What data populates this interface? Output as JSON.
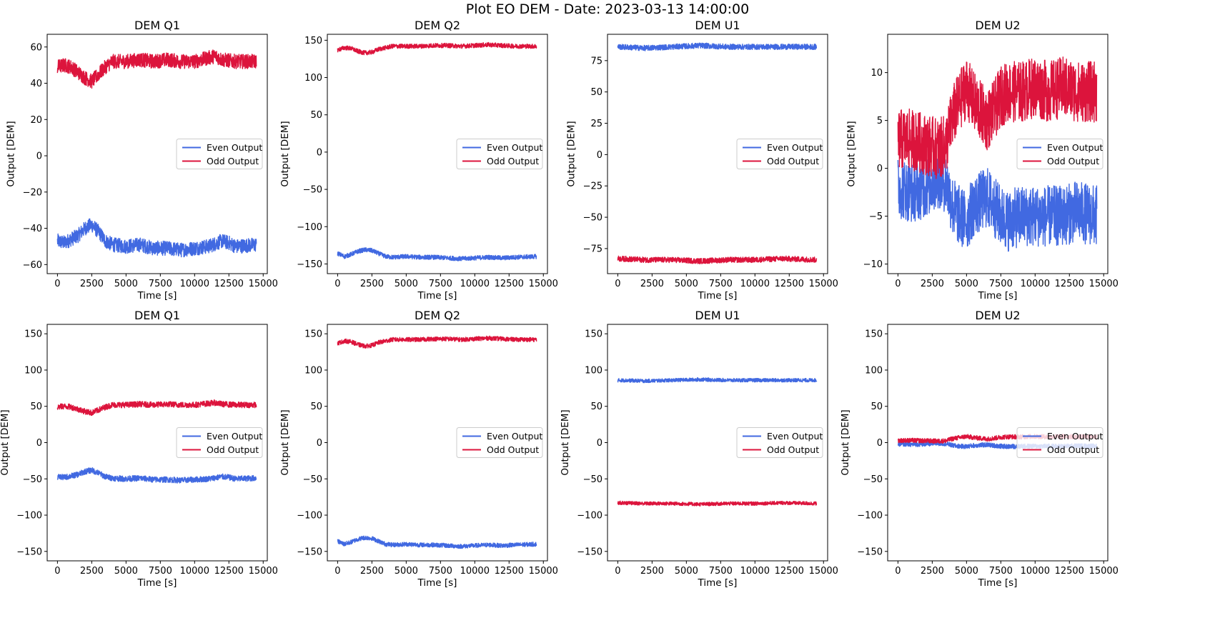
{
  "figure_title": "Plot EO DEM - Date: 2023-03-13 14:00:00",
  "colors": {
    "even": "#4169E1",
    "odd": "#DC143C"
  },
  "chart_data": [
    {
      "type": "line",
      "title": "DEM Q1",
      "xlabel": "Time [s]",
      "ylabel": "Output [DEM]",
      "xlim": [
        -750,
        15300
      ],
      "ylim": [
        -65,
        67
      ],
      "xticks": [
        0,
        2500,
        5000,
        7500,
        10000,
        12500,
        15000
      ],
      "xtick_labels": [
        "0",
        "2500",
        "5000",
        "7500",
        "10000",
        "12500",
        "15000"
      ],
      "yticks": [
        -60,
        -40,
        -20,
        0,
        20,
        40,
        60
      ],
      "ytick_labels": [
        "−60",
        "−40",
        "−20",
        "0",
        "20",
        "40",
        "60"
      ],
      "legend": {
        "position": "center-right",
        "entries": [
          "Even Output",
          "Odd Output"
        ]
      },
      "series": [
        {
          "name": "Even Output",
          "color": "#4169E1",
          "x": [
            0,
            500,
            1000,
            1500,
            2000,
            2500,
            3000,
            3500,
            4000,
            5000,
            6000,
            7000,
            8000,
            9000,
            10000,
            11000,
            12000,
            12500,
            13000,
            14500
          ],
          "y": [
            -47,
            -48,
            -46,
            -44,
            -40,
            -38,
            -42,
            -47,
            -49,
            -50,
            -49,
            -51,
            -51,
            -52,
            -51,
            -50,
            -47,
            -48,
            -50,
            -49
          ],
          "band": 4
        },
        {
          "name": "Odd Output",
          "color": "#DC143C",
          "x": [
            0,
            500,
            1000,
            1500,
            2000,
            2500,
            3000,
            3500,
            4000,
            5000,
            6000,
            7000,
            8000,
            9000,
            10000,
            11000,
            11500,
            12000,
            13000,
            14500
          ],
          "y": [
            49,
            50,
            49,
            46,
            43,
            41,
            45,
            49,
            52,
            52,
            53,
            52,
            53,
            52,
            52,
            54,
            55,
            53,
            52,
            52
          ],
          "band": 4
        }
      ]
    },
    {
      "type": "line",
      "title": "DEM Q2",
      "xlabel": "Time [s]",
      "ylabel": "Output [DEM]",
      "xlim": [
        -750,
        15300
      ],
      "ylim": [
        -163,
        158
      ],
      "xticks": [
        0,
        2500,
        5000,
        7500,
        10000,
        12500,
        15000
      ],
      "xtick_labels": [
        "0",
        "2500",
        "5000",
        "7500",
        "10000",
        "12500",
        "15000"
      ],
      "yticks": [
        -150,
        -100,
        -50,
        0,
        50,
        100,
        150
      ],
      "ytick_labels": [
        "−150",
        "−100",
        "−50",
        "0",
        "50",
        "100",
        "150"
      ],
      "legend": {
        "position": "center-right",
        "entries": [
          "Even Output",
          "Odd Output"
        ]
      },
      "series": [
        {
          "name": "Even Output",
          "color": "#4169E1",
          "x": [
            0,
            500,
            1000,
            1500,
            2000,
            2500,
            3000,
            3500,
            4000,
            5000,
            6000,
            7000,
            8000,
            9000,
            10000,
            11000,
            12000,
            13000,
            14500
          ],
          "y": [
            -136,
            -140,
            -137,
            -133,
            -131,
            -132,
            -136,
            -140,
            -141,
            -140,
            -141,
            -141,
            -142,
            -143,
            -142,
            -141,
            -142,
            -141,
            -140
          ],
          "band": 3
        },
        {
          "name": "Odd Output",
          "color": "#DC143C",
          "x": [
            0,
            500,
            1000,
            1500,
            2000,
            2500,
            3000,
            3500,
            4000,
            5000,
            6000,
            7000,
            8000,
            9000,
            10000,
            11000,
            12000,
            13000,
            14500
          ],
          "y": [
            137,
            140,
            139,
            135,
            133,
            134,
            138,
            140,
            142,
            142,
            142,
            143,
            143,
            142,
            143,
            144,
            143,
            142,
            142
          ],
          "band": 3
        }
      ]
    },
    {
      "type": "line",
      "title": "DEM U1",
      "xlabel": "Time [s]",
      "ylabel": "Output [DEM]",
      "xlim": [
        -750,
        15300
      ],
      "ylim": [
        -95,
        96
      ],
      "xticks": [
        0,
        2500,
        5000,
        7500,
        10000,
        12500,
        15000
      ],
      "xtick_labels": [
        "0",
        "2500",
        "5000",
        "7500",
        "10000",
        "12500",
        "15000"
      ],
      "yticks": [
        -75,
        -50,
        -25,
        0,
        25,
        50,
        75
      ],
      "ytick_labels": [
        "−75",
        "−50",
        "−25",
        "0",
        "25",
        "50",
        "75"
      ],
      "legend": {
        "position": "center-right",
        "entries": [
          "Even Output",
          "Odd Output"
        ]
      },
      "series": [
        {
          "name": "Even Output",
          "color": "#4169E1",
          "x": [
            0,
            2000,
            4000,
            6000,
            8000,
            10000,
            12000,
            14500
          ],
          "y": [
            86,
            85,
            86,
            87,
            86,
            86,
            86,
            86
          ],
          "band": 2.2
        },
        {
          "name": "Odd Output",
          "color": "#DC143C",
          "x": [
            0,
            2000,
            4000,
            6000,
            8000,
            10000,
            12000,
            14500
          ],
          "y": [
            -83,
            -84,
            -84,
            -85,
            -84,
            -84,
            -83,
            -84
          ],
          "band": 2.2
        }
      ]
    },
    {
      "type": "line",
      "title": "DEM U2",
      "xlabel": "Time [s]",
      "ylabel": "Output [DEM]",
      "xlim": [
        -750,
        15300
      ],
      "ylim": [
        -11,
        14
      ],
      "xticks": [
        0,
        2500,
        5000,
        7500,
        10000,
        12500,
        15000
      ],
      "xtick_labels": [
        "0",
        "2500",
        "5000",
        "7500",
        "10000",
        "12500",
        "15000"
      ],
      "yticks": [
        -10,
        -5,
        0,
        5,
        10
      ],
      "ytick_labels": [
        "−10",
        "−5",
        "0",
        "5",
        "10"
      ],
      "legend": {
        "position": "center-right",
        "entries": [
          "Even Output",
          "Odd Output"
        ]
      },
      "series": [
        {
          "name": "Even Output",
          "color": "#4169E1",
          "x": [
            0,
            1000,
            2000,
            3000,
            3500,
            4000,
            4500,
            5000,
            5500,
            6000,
            6500,
            7000,
            7500,
            8000,
            9000,
            10000,
            11000,
            12000,
            13000,
            14500
          ],
          "y": [
            -2,
            -2.5,
            -2,
            -1,
            -1.5,
            -4,
            -5,
            -5.5,
            -4,
            -3.5,
            -3,
            -4,
            -5,
            -5.5,
            -5,
            -5,
            -5,
            -5,
            -4.5,
            -5
          ],
          "band": 3.2
        },
        {
          "name": "Odd Output",
          "color": "#DC143C",
          "x": [
            0,
            1000,
            2000,
            3000,
            3500,
            4000,
            4500,
            5000,
            5500,
            6000,
            6500,
            7000,
            7500,
            8000,
            9000,
            10000,
            11000,
            12000,
            13000,
            14500
          ],
          "y": [
            3,
            3,
            2.5,
            2,
            2.5,
            5.5,
            7,
            8.5,
            7,
            6,
            5,
            6,
            7.5,
            8,
            8,
            8.5,
            8,
            8.5,
            8,
            8
          ],
          "band": 3.2
        }
      ]
    },
    {
      "type": "line",
      "title": "DEM Q1",
      "xlabel": "Time [s]",
      "ylabel": "Output [DEM]",
      "xlim": [
        -750,
        15300
      ],
      "ylim": [
        -163,
        163
      ],
      "xticks": [
        0,
        2500,
        5000,
        7500,
        10000,
        12500,
        15000
      ],
      "xtick_labels": [
        "0",
        "2500",
        "5000",
        "7500",
        "10000",
        "12500",
        "15000"
      ],
      "yticks": [
        -150,
        -100,
        -50,
        0,
        50,
        100,
        150
      ],
      "ytick_labels": [
        "−150",
        "−100",
        "−50",
        "0",
        "50",
        "100",
        "150"
      ],
      "legend": {
        "position": "center-right",
        "entries": [
          "Even Output",
          "Odd Output"
        ]
      },
      "series": [
        {
          "name": "Even Output",
          "color": "#4169E1",
          "x": [
            0,
            500,
            1000,
            1500,
            2000,
            2500,
            3000,
            3500,
            4000,
            5000,
            6000,
            7000,
            8000,
            9000,
            10000,
            11000,
            12000,
            12500,
            13000,
            14500
          ],
          "y": [
            -47,
            -48,
            -46,
            -44,
            -40,
            -38,
            -42,
            -47,
            -49,
            -50,
            -49,
            -51,
            -51,
            -52,
            -51,
            -50,
            -47,
            -48,
            -50,
            -49
          ],
          "band": 4
        },
        {
          "name": "Odd Output",
          "color": "#DC143C",
          "x": [
            0,
            500,
            1000,
            1500,
            2000,
            2500,
            3000,
            3500,
            4000,
            5000,
            6000,
            7000,
            8000,
            9000,
            10000,
            11000,
            11500,
            12000,
            13000,
            14500
          ],
          "y": [
            49,
            50,
            49,
            46,
            43,
            41,
            45,
            49,
            52,
            52,
            53,
            52,
            53,
            52,
            52,
            54,
            55,
            53,
            52,
            52
          ],
          "band": 4
        }
      ]
    },
    {
      "type": "line",
      "title": "DEM Q2",
      "xlabel": "Time [s]",
      "ylabel": "Output [DEM]",
      "xlim": [
        -750,
        15300
      ],
      "ylim": [
        -163,
        163
      ],
      "xticks": [
        0,
        2500,
        5000,
        7500,
        10000,
        12500,
        15000
      ],
      "xtick_labels": [
        "0",
        "2500",
        "5000",
        "7500",
        "10000",
        "12500",
        "15000"
      ],
      "yticks": [
        -150,
        -100,
        -50,
        0,
        50,
        100,
        150
      ],
      "ytick_labels": [
        "−150",
        "−100",
        "−50",
        "0",
        "50",
        "100",
        "150"
      ],
      "legend": {
        "position": "center-right",
        "entries": [
          "Even Output",
          "Odd Output"
        ]
      },
      "series": [
        {
          "name": "Even Output",
          "color": "#4169E1",
          "x": [
            0,
            500,
            1000,
            1500,
            2000,
            2500,
            3000,
            3500,
            4000,
            5000,
            6000,
            7000,
            8000,
            9000,
            10000,
            11000,
            12000,
            13000,
            14500
          ],
          "y": [
            -136,
            -140,
            -137,
            -133,
            -131,
            -132,
            -136,
            -140,
            -141,
            -140,
            -141,
            -141,
            -142,
            -143,
            -142,
            -141,
            -142,
            -141,
            -140
          ],
          "band": 3
        },
        {
          "name": "Odd Output",
          "color": "#DC143C",
          "x": [
            0,
            500,
            1000,
            1500,
            2000,
            2500,
            3000,
            3500,
            4000,
            5000,
            6000,
            7000,
            8000,
            9000,
            10000,
            11000,
            12000,
            13000,
            14500
          ],
          "y": [
            137,
            140,
            139,
            135,
            133,
            134,
            138,
            140,
            142,
            142,
            142,
            143,
            143,
            142,
            143,
            144,
            143,
            142,
            142
          ],
          "band": 3
        }
      ]
    },
    {
      "type": "line",
      "title": "DEM U1",
      "xlabel": "Time [s]",
      "ylabel": "Output [DEM]",
      "xlim": [
        -750,
        15300
      ],
      "ylim": [
        -163,
        163
      ],
      "xticks": [
        0,
        2500,
        5000,
        7500,
        10000,
        12500,
        15000
      ],
      "xtick_labels": [
        "0",
        "2500",
        "5000",
        "7500",
        "10000",
        "12500",
        "15000"
      ],
      "yticks": [
        -150,
        -100,
        -50,
        0,
        50,
        100,
        150
      ],
      "ytick_labels": [
        "−150",
        "−100",
        "−50",
        "0",
        "50",
        "100",
        "150"
      ],
      "legend": {
        "position": "center-right",
        "entries": [
          "Even Output",
          "Odd Output"
        ]
      },
      "series": [
        {
          "name": "Even Output",
          "color": "#4169E1",
          "x": [
            0,
            2000,
            4000,
            6000,
            8000,
            10000,
            12000,
            14500
          ],
          "y": [
            86,
            85,
            86,
            87,
            86,
            86,
            86,
            86
          ],
          "band": 2.5
        },
        {
          "name": "Odd Output",
          "color": "#DC143C",
          "x": [
            0,
            2000,
            4000,
            6000,
            8000,
            10000,
            12000,
            14500
          ],
          "y": [
            -83,
            -84,
            -84,
            -85,
            -84,
            -84,
            -83,
            -84
          ],
          "band": 2.5
        }
      ]
    },
    {
      "type": "line",
      "title": "DEM U2",
      "xlabel": "Time [s]",
      "ylabel": "Output [DEM]",
      "xlim": [
        -750,
        15300
      ],
      "ylim": [
        -163,
        163
      ],
      "xticks": [
        0,
        2500,
        5000,
        7500,
        10000,
        12500,
        15000
      ],
      "xtick_labels": [
        "0",
        "2500",
        "5000",
        "7500",
        "10000",
        "12500",
        "15000"
      ],
      "yticks": [
        -150,
        -100,
        -50,
        0,
        50,
        100,
        150
      ],
      "ytick_labels": [
        "−150",
        "−100",
        "−50",
        "0",
        "50",
        "100",
        "150"
      ],
      "legend": {
        "position": "center-right",
        "entries": [
          "Even Output",
          "Odd Output"
        ]
      },
      "series": [
        {
          "name": "Even Output",
          "color": "#4169E1",
          "x": [
            0,
            1000,
            2000,
            3000,
            3500,
            4000,
            4500,
            5000,
            5500,
            6000,
            6500,
            7000,
            7500,
            8000,
            9000,
            10000,
            11000,
            12000,
            13000,
            14500
          ],
          "y": [
            -2,
            -2.5,
            -2,
            -1,
            -1.5,
            -4,
            -5,
            -5.5,
            -4,
            -3.5,
            -3,
            -4,
            -5,
            -5.5,
            -5,
            -5,
            -5,
            -5,
            -4.5,
            -5
          ],
          "band": 3.2
        },
        {
          "name": "Odd Output",
          "color": "#DC143C",
          "x": [
            0,
            1000,
            2000,
            3000,
            3500,
            4000,
            4500,
            5000,
            5500,
            6000,
            6500,
            7000,
            7500,
            8000,
            9000,
            10000,
            11000,
            12000,
            13000,
            14500
          ],
          "y": [
            3,
            3,
            2.5,
            2,
            2.5,
            5.5,
            7,
            8.5,
            7,
            6,
            5,
            6,
            7.5,
            8,
            8,
            8.5,
            8,
            8.5,
            8,
            8
          ],
          "band": 3.2
        }
      ]
    }
  ]
}
